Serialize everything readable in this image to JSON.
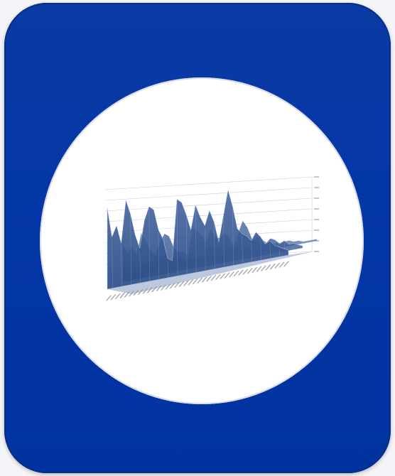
{
  "colors": {
    "tile": "#0437a6",
    "disc": "#ffffff",
    "surface_front": "#4a6aa3",
    "surface_back": "#2a4c86",
    "surface_highlight": "#b7c8e6",
    "grid": "#c9ccd2"
  },
  "icon": "3d-area-chart-icon",
  "chart_data": {
    "type": "area",
    "variant": "3d-surface",
    "grid": true,
    "ylim": [
      0,
      35000
    ],
    "yticks": [
      0,
      5000,
      10000,
      15000,
      20000,
      25000,
      30000,
      35000
    ],
    "series": [
      {
        "values": [
          22,
          14,
          17,
          12,
          24,
          20,
          14,
          10,
          18,
          22,
          21,
          15,
          12,
          6,
          5,
          24,
          23,
          19,
          14,
          22,
          18,
          15,
          20,
          16,
          9,
          18,
          27,
          21,
          13,
          11,
          10,
          8,
          11,
          9,
          6,
          7,
          5,
          4,
          3,
          2
        ]
      },
      {
        "values": [
          12,
          9,
          11,
          8,
          15,
          12,
          9,
          7,
          11,
          14,
          13,
          9,
          7,
          4,
          3,
          15,
          14,
          12,
          9,
          14,
          11,
          10,
          12,
          10,
          6,
          11,
          16,
          13,
          8,
          7,
          6,
          5,
          7,
          6,
          4,
          5,
          3,
          3,
          2,
          1
        ]
      },
      {
        "values": [
          6,
          4,
          5,
          4,
          7,
          6,
          4,
          3,
          5,
          7,
          6,
          4,
          3,
          2,
          2,
          7,
          7,
          6,
          4,
          7,
          5,
          5,
          6,
          5,
          3,
          5,
          8,
          6,
          4,
          3,
          3,
          2,
          3,
          3,
          2,
          2,
          1,
          1,
          1,
          1
        ]
      }
    ]
  }
}
